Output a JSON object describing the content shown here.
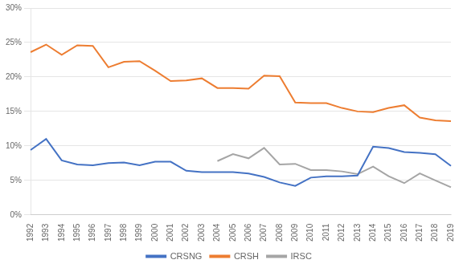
{
  "chart_data": {
    "type": "line",
    "categories": [
      "1992",
      "1993",
      "1994",
      "1995",
      "1996",
      "1997",
      "1998",
      "1999",
      "2000",
      "2001",
      "2002",
      "2003",
      "2004",
      "2005",
      "2006",
      "2007",
      "2008",
      "2009",
      "2010",
      "2011",
      "2012",
      "2013",
      "2014",
      "2015",
      "2016",
      "2017",
      "2018",
      "2019"
    ],
    "series": [
      {
        "name": "CRSNG",
        "color": "#4472C4",
        "values": [
          0.094,
          0.11,
          0.079,
          0.073,
          0.072,
          0.075,
          0.076,
          0.072,
          0.077,
          0.077,
          0.064,
          0.062,
          0.062,
          0.062,
          0.06,
          0.055,
          0.047,
          0.042,
          0.054,
          0.056,
          0.056,
          0.057,
          0.099,
          0.097,
          0.091,
          0.09,
          0.088,
          0.071
        ]
      },
      {
        "name": "CRSH",
        "color": "#ED7D31",
        "values": [
          0.236,
          0.247,
          0.232,
          0.246,
          0.245,
          0.214,
          0.222,
          0.223,
          0.209,
          0.194,
          0.195,
          0.198,
          0.184,
          0.184,
          0.183,
          0.202,
          0.201,
          0.163,
          0.162,
          0.162,
          0.155,
          0.15,
          0.149,
          0.155,
          0.159,
          0.141,
          0.137,
          0.136
        ]
      },
      {
        "name": "IRSC",
        "color": "#A5A5A5",
        "values": [
          null,
          null,
          null,
          null,
          null,
          null,
          null,
          null,
          null,
          null,
          null,
          null,
          0.078,
          0.088,
          0.082,
          0.097,
          0.073,
          0.074,
          0.065,
          0.065,
          0.063,
          0.059,
          0.07,
          0.056,
          0.046,
          0.06,
          0.05,
          0.04
        ]
      }
    ],
    "ylim": [
      0,
      0.3
    ],
    "yticks": [
      {
        "value": 0.0,
        "label": "0%"
      },
      {
        "value": 0.05,
        "label": "5%"
      },
      {
        "value": 0.1,
        "label": "10%"
      },
      {
        "value": 0.15,
        "label": "15%"
      },
      {
        "value": 0.2,
        "label": "20%"
      },
      {
        "value": 0.25,
        "label": "25%"
      },
      {
        "value": 0.3,
        "label": "30%"
      }
    ],
    "grid": true,
    "legend": "bottom"
  }
}
